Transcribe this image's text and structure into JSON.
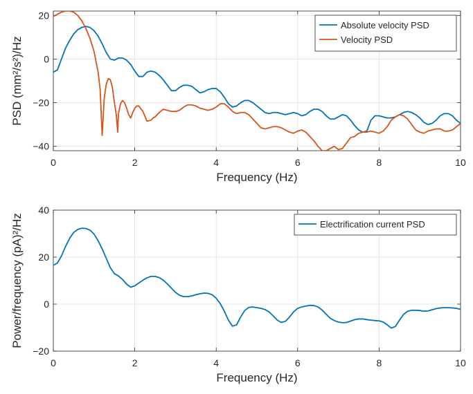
{
  "chart_data": [
    {
      "type": "line",
      "xlabel": "Frequency (Hz)",
      "ylabel": "PSD (mm²/s²)/Hz",
      "ylabel_parts": [
        "PSD (mm",
        "2",
        "/s",
        "2",
        ")/Hz"
      ],
      "xlim": [
        0,
        10
      ],
      "ylim": [
        -42,
        22
      ],
      "xticks": [
        0,
        2,
        4,
        6,
        8,
        10
      ],
      "yticks": [
        -40,
        -20,
        0,
        20
      ],
      "grid": true,
      "legend_position": "top-right",
      "series": [
        {
          "name": "Absolute velocity PSD",
          "color": "#0072BD",
          "x": [
            0,
            0.1,
            0.2,
            0.3,
            0.4,
            0.5,
            0.6,
            0.7,
            0.8,
            0.9,
            1.0,
            1.1,
            1.2,
            1.3,
            1.4,
            1.5,
            1.6,
            1.7,
            1.8,
            1.9,
            2.0,
            2.1,
            2.2,
            2.3,
            2.4,
            2.5,
            2.6,
            2.7,
            2.8,
            2.9,
            3.0,
            3.1,
            3.2,
            3.3,
            3.4,
            3.5,
            3.6,
            3.7,
            3.8,
            3.9,
            4.0,
            4.1,
            4.2,
            4.3,
            4.4,
            4.5,
            4.6,
            4.7,
            4.8,
            4.9,
            5.0,
            5.1,
            5.2,
            5.3,
            5.4,
            5.5,
            5.6,
            5.7,
            5.8,
            5.9,
            6.0,
            6.1,
            6.2,
            6.3,
            6.4,
            6.5,
            6.6,
            6.7,
            6.8,
            6.9,
            7.0,
            7.1,
            7.2,
            7.3,
            7.4,
            7.5,
            7.6,
            7.7,
            7.8,
            7.9,
            8.0,
            8.1,
            8.2,
            8.3,
            8.4,
            8.5,
            8.6,
            8.7,
            8.8,
            8.9,
            9.0,
            9.1,
            9.2,
            9.3,
            9.4,
            9.5,
            9.6,
            9.7,
            9.8,
            9.9,
            10.0
          ],
          "y": [
            -6,
            -5,
            0,
            5,
            8.5,
            11.5,
            13.5,
            14.5,
            15,
            14.5,
            13,
            10.5,
            7,
            3,
            0,
            -0.5,
            0.5,
            0.5,
            -0.5,
            -2.5,
            -5.5,
            -8,
            -8,
            -6,
            -5.5,
            -6,
            -7.5,
            -9.5,
            -12,
            -14.5,
            -14.5,
            -13,
            -12,
            -12,
            -12.5,
            -14,
            -15.5,
            -15,
            -14,
            -13.5,
            -13.5,
            -15,
            -17.5,
            -20.5,
            -22,
            -21.5,
            -20,
            -19,
            -19,
            -20,
            -21.5,
            -23,
            -24.5,
            -25,
            -24.5,
            -24.5,
            -25,
            -25.5,
            -25,
            -24.5,
            -25,
            -26,
            -25.5,
            -24,
            -23,
            -23,
            -24,
            -26,
            -27.5,
            -27.5,
            -26.5,
            -25.5,
            -26,
            -28,
            -30.5,
            -32.5,
            -33.5,
            -33,
            -28,
            -26,
            -26,
            -26.5,
            -27,
            -27,
            -26.5,
            -25.5,
            -24.5,
            -24,
            -24.5,
            -25.5,
            -27,
            -29,
            -30,
            -29.5,
            -28,
            -26,
            -25,
            -25,
            -26,
            -28,
            -29.5
          ]
        },
        {
          "name": "Velocity PSD",
          "color": "#D95319",
          "x": [
            0,
            0.1,
            0.2,
            0.3,
            0.4,
            0.5,
            0.6,
            0.7,
            0.8,
            0.9,
            1.0,
            1.1,
            1.15,
            1.2,
            1.25,
            1.3,
            1.35,
            1.4,
            1.45,
            1.5,
            1.55,
            1.58,
            1.6,
            1.65,
            1.7,
            1.75,
            1.8,
            1.85,
            1.9,
            1.95,
            2.0,
            2.05,
            2.1,
            2.2,
            2.3,
            2.4,
            2.45,
            2.5,
            2.6,
            2.7,
            2.8,
            2.9,
            3.0,
            3.1,
            3.2,
            3.3,
            3.4,
            3.5,
            3.6,
            3.7,
            3.8,
            3.9,
            4.0,
            4.1,
            4.2,
            4.3,
            4.4,
            4.5,
            4.6,
            4.7,
            4.8,
            4.9,
            5.0,
            5.1,
            5.2,
            5.3,
            5.4,
            5.5,
            5.6,
            5.7,
            5.8,
            5.9,
            6.0,
            6.1,
            6.2,
            6.3,
            6.4,
            6.5,
            6.6,
            6.7,
            6.8,
            6.9,
            7.0,
            7.1,
            7.2,
            7.3,
            7.4,
            7.5,
            7.6,
            7.7,
            7.8,
            7.9,
            8.0,
            8.1,
            8.2,
            8.3,
            8.4,
            8.5,
            8.6,
            8.7,
            8.8,
            8.9,
            9.0,
            9.1,
            9.2,
            9.3,
            9.4,
            9.5,
            9.6,
            9.7,
            9.8,
            9.9,
            10.0
          ],
          "y": [
            19.5,
            20.5,
            21.5,
            22,
            22,
            21.5,
            20,
            17.5,
            14,
            9.5,
            3.5,
            -6,
            -14,
            -35,
            -18,
            -11.5,
            -9,
            -9.5,
            -13,
            -20,
            -26,
            -33.5,
            -25,
            -20.5,
            -19,
            -20,
            -22.5,
            -25.5,
            -27,
            -24.5,
            -22.5,
            -21.5,
            -21.5,
            -24,
            -28.5,
            -28,
            -27,
            -26.5,
            -24.5,
            -23,
            -23.5,
            -24,
            -24,
            -23.5,
            -22,
            -21,
            -21,
            -21.5,
            -22.5,
            -23,
            -23.5,
            -23,
            -22,
            -20.5,
            -20.5,
            -22,
            -24,
            -25,
            -24.5,
            -24.5,
            -25.5,
            -27.5,
            -29.5,
            -31.5,
            -32,
            -31.5,
            -31,
            -31,
            -31.5,
            -32.5,
            -33.5,
            -34,
            -33,
            -32.5,
            -33.5,
            -35.5,
            -37.5,
            -40,
            -42,
            -42,
            -41,
            -40,
            -41.5,
            -41,
            -38.5,
            -36,
            -35.5,
            -34,
            -33.5,
            -33.5,
            -33,
            -33.5,
            -34,
            -33,
            -31,
            -28,
            -26.5,
            -25.5,
            -26,
            -27.5,
            -30,
            -32.5,
            -33.5,
            -34,
            -33,
            -32.5,
            -32,
            -32,
            -33,
            -33,
            -32.5,
            -31,
            -29.5
          ]
        }
      ]
    },
    {
      "type": "line",
      "xlabel": "Frequency (Hz)",
      "ylabel": "Power/frequency (pA)²/Hz",
      "ylabel_parts": [
        "Power/frequency (pA)",
        "2",
        "/Hz"
      ],
      "xlim": [
        0,
        10
      ],
      "ylim": [
        -20,
        40
      ],
      "xticks": [
        0,
        2,
        4,
        6,
        8,
        10
      ],
      "yticks": [
        -20,
        0,
        20,
        40
      ],
      "grid": true,
      "legend_position": "top-right",
      "series": [
        {
          "name": "Electrification current PSD",
          "color": "#0072BD",
          "x": [
            0,
            0.1,
            0.2,
            0.3,
            0.4,
            0.5,
            0.6,
            0.7,
            0.8,
            0.9,
            1.0,
            1.1,
            1.2,
            1.3,
            1.4,
            1.5,
            1.6,
            1.7,
            1.8,
            1.9,
            2.0,
            2.1,
            2.2,
            2.3,
            2.4,
            2.5,
            2.6,
            2.7,
            2.8,
            2.9,
            3.0,
            3.1,
            3.2,
            3.3,
            3.4,
            3.5,
            3.6,
            3.7,
            3.8,
            3.9,
            4.0,
            4.1,
            4.2,
            4.3,
            4.4,
            4.5,
            4.6,
            4.7,
            4.8,
            4.9,
            5.0,
            5.1,
            5.2,
            5.3,
            5.4,
            5.5,
            5.6,
            5.7,
            5.8,
            5.9,
            6.0,
            6.1,
            6.2,
            6.3,
            6.4,
            6.5,
            6.6,
            6.7,
            6.8,
            6.9,
            7.0,
            7.1,
            7.2,
            7.3,
            7.4,
            7.5,
            7.6,
            7.7,
            7.8,
            7.9,
            8.0,
            8.1,
            8.2,
            8.3,
            8.4,
            8.5,
            8.6,
            8.7,
            8.8,
            8.9,
            9.0,
            9.1,
            9.2,
            9.3,
            9.4,
            9.5,
            9.6,
            9.7,
            9.8,
            9.9,
            10.0
          ],
          "y": [
            16.5,
            17.5,
            20.5,
            24.5,
            28,
            30.5,
            31.8,
            32.3,
            32.2,
            31.5,
            29.8,
            27,
            23.5,
            19.5,
            15.5,
            13,
            12,
            10.5,
            8.5,
            7.2,
            7.8,
            9,
            10.2,
            11.2,
            11.8,
            11.8,
            11.3,
            10.2,
            8.6,
            6.8,
            5,
            3.8,
            3.2,
            3.2,
            3.5,
            4,
            4.4,
            4.7,
            4.6,
            4,
            2.5,
            0.2,
            -3,
            -6.8,
            -9.4,
            -8.8,
            -5.5,
            -2.7,
            -1.4,
            -1.2,
            -1.5,
            -1.8,
            -2.3,
            -3.3,
            -5,
            -6.8,
            -7.8,
            -7.3,
            -5.5,
            -3.3,
            -1.8,
            -1.2,
            -0.8,
            -0.5,
            -0.6,
            -1.2,
            -2.5,
            -4.3,
            -6,
            -7,
            -7.6,
            -7.9,
            -7.8,
            -7.2,
            -6.6,
            -6.3,
            -6.3,
            -6.6,
            -6.8,
            -7,
            -7.1,
            -7.6,
            -8.8,
            -10.2,
            -9.5,
            -6.8,
            -4.4,
            -3,
            -2.6,
            -2.6,
            -2.7,
            -3,
            -2.9,
            -2.4,
            -1.9,
            -1.6,
            -1.5,
            -1.5,
            -1.6,
            -1.8,
            -2.2
          ]
        }
      ]
    }
  ]
}
